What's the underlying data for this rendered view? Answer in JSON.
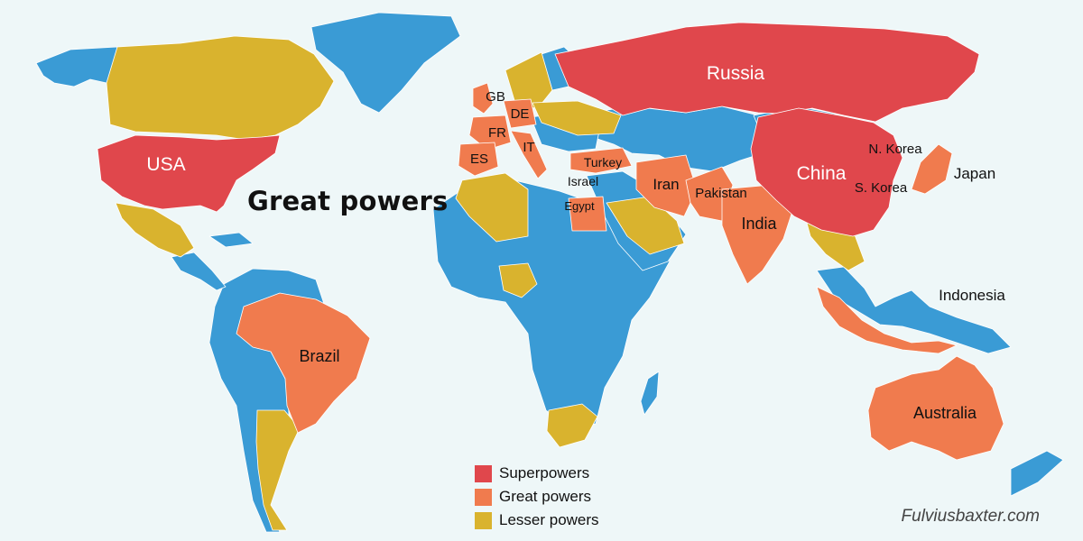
{
  "title": "Great powers",
  "colors": {
    "background": "#eef7f8",
    "superpowers": "#e0474c",
    "great_powers": "#f07b4e",
    "lesser_powers": "#d9b32e",
    "other": "#3a9bd5"
  },
  "legend": [
    {
      "label": "Superpowers",
      "color_key": "superpowers"
    },
    {
      "label": "Great powers",
      "color_key": "great_powers"
    },
    {
      "label": "Lesser powers",
      "color_key": "lesser_powers"
    }
  ],
  "country_labels": {
    "russia": "Russia",
    "usa": "USA",
    "china": "China",
    "n_korea": "N. Korea",
    "s_korea": "S. Korea",
    "japan": "Japan",
    "gb": "GB",
    "de": "DE",
    "fr": "FR",
    "it": "IT",
    "es": "ES",
    "turkey": "Turkey",
    "israel": "Israel",
    "egypt": "Egypt",
    "iran": "Iran",
    "pakistan": "Pakistan",
    "india": "India",
    "indonesia": "Indonesia",
    "brazil": "Brazil",
    "australia": "Australia"
  },
  "credit": "Fulviusbaxter.com"
}
